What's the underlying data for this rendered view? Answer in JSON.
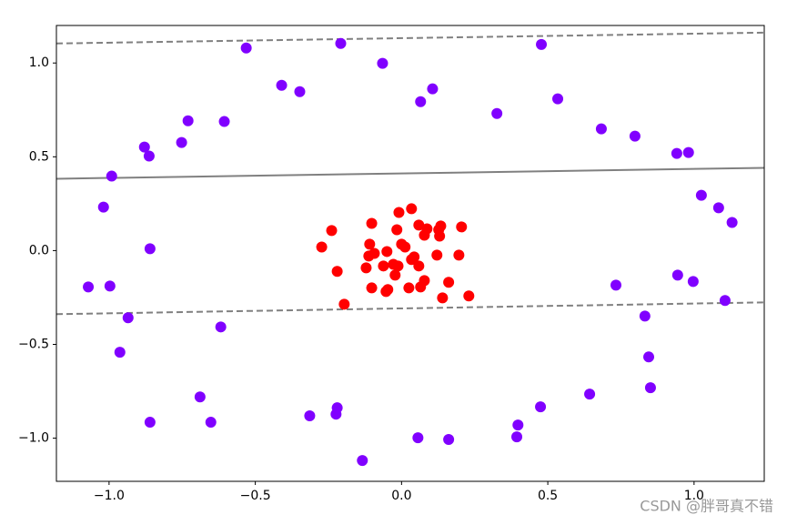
{
  "chart_data": {
    "type": "scatter",
    "xlim": [
      -1.18,
      1.24
    ],
    "ylim": [
      -1.23,
      1.2
    ],
    "xticks": [
      {
        "value": -1,
        "label": "−1.0"
      },
      {
        "value": -0.5,
        "label": "−0.5"
      },
      {
        "value": 0,
        "label": "0.0"
      },
      {
        "value": 0.5,
        "label": "0.5"
      },
      {
        "value": 1,
        "label": "1.0"
      }
    ],
    "yticks": [
      {
        "value": -1,
        "label": "−1.0"
      },
      {
        "value": -0.5,
        "label": "−0.5"
      },
      {
        "value": 0,
        "label": "0.0"
      },
      {
        "value": 0.5,
        "label": "0.5"
      },
      {
        "value": 1,
        "label": "1.0"
      }
    ],
    "series": [
      {
        "color": "#8000ff",
        "x": [
          -0.531,
          -0.208,
          0.478,
          -0.065,
          -0.41,
          -0.348,
          0.106,
          0.065,
          0.534,
          0.326,
          -0.73,
          -0.606,
          0.683,
          0.798,
          -0.879,
          -0.752,
          -0.863,
          0.941,
          0.981,
          -0.991,
          1.025,
          -1.019,
          1.084,
          1.13,
          -0.86,
          -1.071,
          -0.997,
          0.733,
          0.944,
          0.997,
          1.106,
          -0.935,
          0.832,
          -0.618,
          -0.963,
          0.845,
          -0.689,
          0.851,
          0.643,
          0.475,
          -0.86,
          -0.652,
          -0.314,
          -0.22,
          -0.224,
          0.398,
          0.056,
          0.161,
          0.394,
          -0.134
        ],
        "values": [
          1.08,
          1.104,
          1.099,
          0.998,
          0.881,
          0.847,
          0.862,
          0.794,
          0.809,
          0.731,
          0.692,
          0.688,
          0.649,
          0.61,
          0.552,
          0.576,
          0.504,
          0.518,
          0.523,
          0.397,
          0.295,
          0.232,
          0.228,
          0.15,
          0.01,
          -0.194,
          -0.189,
          -0.184,
          -0.131,
          -0.165,
          -0.266,
          -0.358,
          -0.349,
          -0.407,
          -0.542,
          -0.567,
          -0.78,
          -0.731,
          -0.765,
          -0.833,
          -0.915,
          -0.915,
          -0.881,
          -0.838,
          -0.872,
          -0.93,
          -0.998,
          -1.007,
          -0.993,
          -1.119
        ]
      },
      {
        "color": "#ff0000",
        "x": [
          -0.009,
          0.034,
          -0.239,
          -0.102,
          -0.016,
          0.059,
          0.134,
          0.205,
          0.087,
          0.078,
          0.127,
          0.13,
          -0.273,
          -0.109,
          0.0,
          0.012,
          -0.05,
          -0.112,
          -0.093,
          0.043,
          0.121,
          0.196,
          -0.121,
          -0.062,
          -0.012,
          0.059,
          -0.22,
          -0.022,
          -0.102,
          -0.047,
          0.025,
          0.078,
          0.161,
          -0.053,
          0.065,
          0.14,
          0.23,
          -0.196,
          0.034,
          -0.028
        ],
        "values": [
          0.203,
          0.223,
          0.107,
          0.145,
          0.111,
          0.136,
          0.131,
          0.126,
          0.116,
          0.082,
          0.111,
          0.077,
          0.019,
          0.034,
          0.034,
          0.019,
          -0.005,
          -0.029,
          -0.015,
          -0.034,
          -0.024,
          -0.024,
          -0.092,
          -0.082,
          -0.082,
          -0.082,
          -0.111,
          -0.131,
          -0.199,
          -0.208,
          -0.199,
          -0.16,
          -0.169,
          -0.218,
          -0.194,
          -0.252,
          -0.242,
          -0.286,
          -0.048,
          -0.073
        ]
      }
    ],
    "lines": [
      {
        "x": [
          -1.18,
          1.24
        ],
        "values": [
          1.104,
          1.162
        ],
        "color": "#808080",
        "dashed": true
      },
      {
        "x": [
          -1.18,
          1.24
        ],
        "values": [
          0.383,
          0.441
        ],
        "color": "#808080",
        "dashed": false
      },
      {
        "x": [
          -1.18,
          1.24
        ],
        "values": [
          -0.339,
          -0.276
        ],
        "color": "#808080",
        "dashed": true
      }
    ],
    "watermark": "CSDN @胖哥真不错"
  }
}
